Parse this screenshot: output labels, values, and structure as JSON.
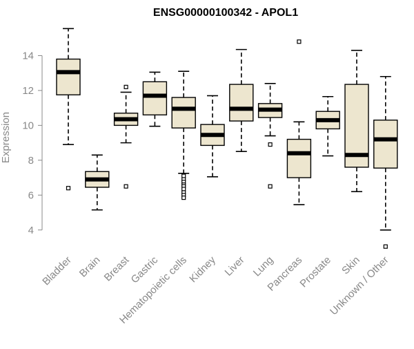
{
  "chart_data": {
    "type": "boxplot",
    "title": "ENSG00000100342 - APOL1",
    "xlabel": "",
    "ylabel": "Expression",
    "ylim": [
      3.0,
      16.0
    ],
    "yticks": [
      4,
      6,
      8,
      10,
      12,
      14
    ],
    "box_color": "#ede6cf",
    "median_color": "#000000",
    "categories": [
      "Bladder",
      "Brain",
      "Breast",
      "Gastric",
      "Hematopoietic cells",
      "Kidney",
      "Liver",
      "Lung",
      "Pancreas",
      "Prostate",
      "Skin",
      "Unknown / Other"
    ],
    "boxes": [
      {
        "q1": 11.75,
        "median": 13.05,
        "q3": 13.8,
        "whisker_low": 8.9,
        "whisker_high": 15.55,
        "outliers": [
          6.4
        ]
      },
      {
        "q1": 6.45,
        "median": 6.9,
        "q3": 7.35,
        "whisker_low": 5.15,
        "whisker_high": 8.3,
        "outliers": []
      },
      {
        "q1": 10.0,
        "median": 10.35,
        "q3": 10.7,
        "whisker_low": 9.0,
        "whisker_high": 11.9,
        "outliers": [
          12.2,
          6.5
        ]
      },
      {
        "q1": 10.6,
        "median": 11.7,
        "q3": 12.5,
        "whisker_low": 9.95,
        "whisker_high": 13.05,
        "outliers": []
      },
      {
        "q1": 9.85,
        "median": 10.95,
        "q3": 11.6,
        "whisker_low": 7.25,
        "whisker_high": 13.1,
        "outliers": [
          7.1,
          6.9,
          6.75,
          6.6,
          6.5,
          6.35,
          6.15,
          6.0,
          5.85
        ]
      },
      {
        "q1": 8.85,
        "median": 9.45,
        "q3": 10.05,
        "whisker_low": 7.05,
        "whisker_high": 11.7,
        "outliers": []
      },
      {
        "q1": 10.25,
        "median": 10.95,
        "q3": 12.35,
        "whisker_low": 8.5,
        "whisker_high": 14.35,
        "outliers": []
      },
      {
        "q1": 10.45,
        "median": 10.9,
        "q3": 11.25,
        "whisker_low": 9.4,
        "whisker_high": 12.4,
        "outliers": [
          8.9,
          6.5
        ]
      },
      {
        "q1": 7.0,
        "median": 8.4,
        "q3": 9.2,
        "whisker_low": 5.45,
        "whisker_high": 10.2,
        "outliers": [
          14.8
        ]
      },
      {
        "q1": 9.8,
        "median": 10.3,
        "q3": 10.8,
        "whisker_low": 8.25,
        "whisker_high": 11.65,
        "outliers": []
      },
      {
        "q1": 7.6,
        "median": 8.3,
        "q3": 12.35,
        "whisker_low": 6.2,
        "whisker_high": 14.3,
        "outliers": []
      },
      {
        "q1": 7.55,
        "median": 9.2,
        "q3": 10.3,
        "whisker_low": 4.0,
        "whisker_high": 12.8,
        "outliers": [
          3.05
        ]
      }
    ]
  }
}
